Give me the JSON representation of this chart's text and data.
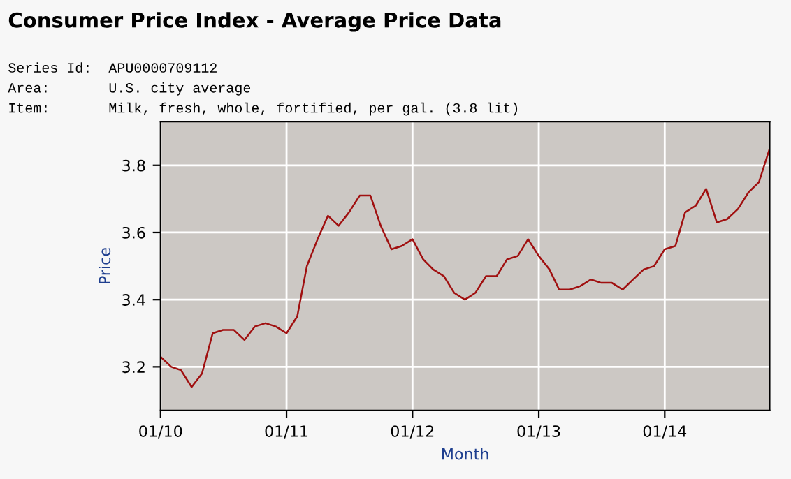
{
  "chart_data": {
    "type": "line",
    "title": "Consumer Price Index - Average Price Data",
    "annotations": [
      "Series Id:  APU0000709112",
      "Area:       U.S. city average",
      "Item:       Milk, fresh, whole, fortified, per gal. (3.8 lit)"
    ],
    "xlabel": "Month",
    "ylabel": "Price",
    "x": [
      "2010-01",
      "2010-02",
      "2010-03",
      "2010-04",
      "2010-05",
      "2010-06",
      "2010-07",
      "2010-08",
      "2010-09",
      "2010-10",
      "2010-11",
      "2010-12",
      "2011-01",
      "2011-02",
      "2011-03",
      "2011-04",
      "2011-05",
      "2011-06",
      "2011-07",
      "2011-08",
      "2011-09",
      "2011-10",
      "2011-11",
      "2011-12",
      "2012-01",
      "2012-02",
      "2012-03",
      "2012-04",
      "2012-05",
      "2012-06",
      "2012-07",
      "2012-08",
      "2012-09",
      "2012-10",
      "2012-11",
      "2012-12",
      "2013-01",
      "2013-02",
      "2013-03",
      "2013-04",
      "2013-05",
      "2013-06",
      "2013-07",
      "2013-08",
      "2013-09",
      "2013-10",
      "2013-11",
      "2013-12",
      "2014-01",
      "2014-02",
      "2014-03",
      "2014-04",
      "2014-05",
      "2014-06",
      "2014-07",
      "2014-08",
      "2014-09",
      "2014-10",
      "2014-11"
    ],
    "series": [
      {
        "color": "#a01010",
        "values": [
          3.23,
          3.2,
          3.19,
          3.14,
          3.18,
          3.3,
          3.31,
          3.31,
          3.28,
          3.32,
          3.33,
          3.32,
          3.3,
          3.35,
          3.5,
          3.58,
          3.65,
          3.62,
          3.66,
          3.71,
          3.71,
          3.62,
          3.55,
          3.56,
          3.58,
          3.52,
          3.49,
          3.47,
          3.42,
          3.4,
          3.42,
          3.47,
          3.47,
          3.52,
          3.53,
          3.58,
          3.53,
          3.49,
          3.43,
          3.43,
          3.44,
          3.46,
          3.45,
          3.45,
          3.43,
          3.46,
          3.49,
          3.5,
          3.55,
          3.56,
          3.66,
          3.68,
          3.73,
          3.63,
          3.64,
          3.67,
          3.72,
          3.75,
          3.85
        ]
      }
    ],
    "xlim": [
      "2010-01",
      "2014-11"
    ],
    "xticks": [
      {
        "value": "2010-01",
        "label": "01/10"
      },
      {
        "value": "2011-01",
        "label": "01/11"
      },
      {
        "value": "2012-01",
        "label": "01/12"
      },
      {
        "value": "2013-01",
        "label": "01/13"
      },
      {
        "value": "2014-01",
        "label": "01/14"
      }
    ],
    "ylim": [
      3.07,
      3.93
    ],
    "yticks": [
      3.2,
      3.4,
      3.6,
      3.8
    ],
    "grid": true,
    "legend": false,
    "marker": "none",
    "line_style": "solid"
  }
}
